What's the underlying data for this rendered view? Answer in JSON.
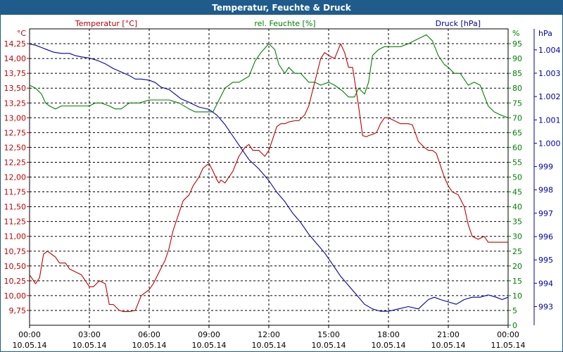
{
  "window": {
    "title": "Temperatur, Feuchte & Druck"
  },
  "chart_data": {
    "type": "line",
    "title": "Temperatur, Feuchte & Druck",
    "axes": {
      "temperature": {
        "label": "Temperatur [°C]",
        "unit": "°C",
        "range": [
          9.5,
          14.5
        ],
        "color": "#c00000",
        "ticks": [
          "9,75",
          "10,00",
          "10,25",
          "10,50",
          "10,75",
          "11,00",
          "11,25",
          "11,50",
          "11,75",
          "12,00",
          "12,25",
          "12,50",
          "12,75",
          "13,00",
          "13,25",
          "13,50",
          "13,75",
          "14,00",
          "14,25"
        ]
      },
      "humidity": {
        "label": "rel. Feuchte [%]",
        "unit": "%",
        "range": [
          0,
          100
        ],
        "color": "#008000",
        "ticks": [
          "0",
          "5",
          "10",
          "15",
          "20",
          "25",
          "30",
          "35",
          "40",
          "45",
          "50",
          "55",
          "60",
          "65",
          "70",
          "75",
          "80",
          "85",
          "90",
          "95"
        ]
      },
      "pressure": {
        "label": "Druck [hPa]",
        "unit": "hPa",
        "range": [
          992.2,
          1004.9
        ],
        "color": "#0000a0",
        "ticks": [
          "993",
          "994",
          "995",
          "996",
          "997",
          "998",
          "999",
          "1.000",
          "1.001",
          "1.002",
          "1.003",
          "1.004"
        ]
      },
      "x": {
        "range": [
          0,
          24
        ],
        "ticks": [
          {
            "time": "00:00",
            "date": "10.05.14"
          },
          {
            "time": "03:00",
            "date": "10.05.14"
          },
          {
            "time": "06:00",
            "date": "10.05.14"
          },
          {
            "time": "09:00",
            "date": "10.05.14"
          },
          {
            "time": "12:00",
            "date": "10.05.14"
          },
          {
            "time": "15:00",
            "date": "10.05.14"
          },
          {
            "time": "18:00",
            "date": "10.05.14"
          },
          {
            "time": "21:00",
            "date": "10.05.14"
          },
          {
            "time": "00:00",
            "date": "11.05.14"
          }
        ]
      }
    },
    "grid": true,
    "series": [
      {
        "name": "Temperatur [°C]",
        "axis": "temperature",
        "color": "#c00000",
        "x": [
          0,
          0.3,
          0.5,
          0.7,
          0.9,
          1.1,
          1.3,
          1.5,
          1.8,
          2.0,
          2.3,
          2.6,
          3.0,
          3.2,
          3.5,
          3.8,
          4.0,
          4.2,
          4.5,
          4.7,
          5.0,
          5.3,
          5.6,
          5.8,
          6.0,
          6.2,
          6.5,
          6.8,
          7.0,
          7.2,
          7.5,
          7.7,
          8.0,
          8.2,
          8.5,
          8.7,
          9.0,
          9.2,
          9.4,
          9.5,
          9.6,
          9.8,
          10.0,
          10.2,
          10.5,
          10.8,
          11.0,
          11.2,
          11.5,
          11.8,
          12.0,
          12.2,
          12.4,
          12.6,
          12.8,
          13.0,
          13.3,
          13.5,
          13.8,
          14.0,
          14.3,
          14.6,
          14.8,
          15.0,
          15.3,
          15.6,
          15.8,
          16.0,
          16.2,
          16.5,
          16.7,
          16.9,
          17.0,
          17.2,
          17.4,
          17.6,
          17.8,
          18.0,
          18.3,
          18.6,
          18.8,
          19.0,
          19.2,
          19.5,
          19.8,
          20.0,
          20.2,
          20.4,
          20.6,
          20.8,
          21.0,
          21.2,
          21.5,
          21.8,
          22.0,
          22.2,
          22.5,
          22.8,
          23.0,
          23.2,
          23.4,
          23.6,
          23.8,
          23.9,
          24.0
        ],
        "values": [
          10.35,
          10.2,
          10.3,
          10.7,
          10.75,
          10.7,
          10.65,
          10.55,
          10.55,
          10.45,
          10.4,
          10.35,
          10.15,
          10.15,
          10.25,
          10.2,
          9.85,
          9.85,
          9.75,
          9.73,
          9.73,
          9.75,
          10.0,
          10.05,
          10.1,
          10.2,
          10.4,
          10.6,
          10.8,
          11.1,
          11.4,
          11.6,
          11.7,
          11.85,
          12.0,
          12.15,
          12.23,
          12.1,
          11.95,
          11.9,
          11.95,
          11.9,
          12.0,
          12.1,
          12.35,
          12.5,
          12.55,
          12.45,
          12.45,
          12.35,
          12.45,
          12.65,
          12.85,
          12.9,
          12.9,
          12.93,
          12.95,
          12.95,
          13.05,
          13.2,
          13.6,
          14.0,
          14.1,
          14.05,
          14.0,
          14.25,
          14.1,
          13.85,
          13.85,
          13.2,
          12.7,
          12.68,
          12.7,
          12.72,
          12.75,
          12.9,
          13.0,
          13.0,
          12.95,
          12.9,
          12.9,
          12.9,
          12.88,
          12.6,
          12.5,
          12.45,
          12.45,
          12.4,
          12.2,
          12.0,
          11.85,
          11.75,
          11.7,
          11.5,
          11.2,
          11.0,
          10.95,
          11.0,
          10.9,
          10.9,
          10.9,
          10.9,
          10.9,
          10.9,
          10.9
        ]
      },
      {
        "name": "rel. Feuchte [%]",
        "axis": "humidity",
        "color": "#008000",
        "x": [
          0,
          0.3,
          0.6,
          0.8,
          1.0,
          1.3,
          1.6,
          2.0,
          2.5,
          3.0,
          3.3,
          3.6,
          4.0,
          4.3,
          4.6,
          5.0,
          5.5,
          6.0,
          6.5,
          7.0,
          7.5,
          8.0,
          8.3,
          8.7,
          9.0,
          9.2,
          9.5,
          9.8,
          10.2,
          10.5,
          11.0,
          11.3,
          11.6,
          12.0,
          12.3,
          12.5,
          12.8,
          13.0,
          13.3,
          13.6,
          14.0,
          14.3,
          14.6,
          15.0,
          15.3,
          15.7,
          16.0,
          16.3,
          16.5,
          16.8,
          17.0,
          17.2,
          17.5,
          17.8,
          18.0,
          18.3,
          18.6,
          19.0,
          19.3,
          19.6,
          19.9,
          20.2,
          20.5,
          20.8,
          21.0,
          21.3,
          21.6,
          22.0,
          22.3,
          22.6,
          23.0,
          23.3,
          23.6,
          24.0
        ],
        "values": [
          81,
          80,
          78,
          75,
          74,
          73,
          74,
          74,
          74,
          74,
          75,
          75,
          74,
          73,
          73,
          75,
          75,
          76,
          76,
          76,
          75,
          73,
          72,
          72,
          72,
          72,
          76,
          80,
          82,
          82,
          84,
          89,
          92,
          95,
          93,
          88,
          85,
          87,
          85,
          85,
          82,
          82,
          81,
          82,
          81,
          79,
          77,
          77,
          80,
          78,
          82,
          91,
          93,
          94,
          94,
          94,
          94,
          95,
          96,
          97,
          98,
          96,
          91,
          88,
          87,
          85,
          85,
          81,
          82,
          81,
          74,
          72,
          71,
          70
        ]
      },
      {
        "name": "Druck [hPa]",
        "axis": "pressure",
        "color": "#0000a0",
        "x": [
          0,
          0.3,
          0.6,
          0.9,
          1.2,
          1.6,
          2.0,
          2.3,
          2.6,
          3.0,
          3.4,
          3.8,
          4.2,
          4.6,
          5.0,
          5.3,
          5.6,
          6.0,
          6.3,
          6.6,
          7.0,
          7.3,
          7.6,
          8.0,
          8.5,
          9.0,
          9.4,
          9.8,
          10.2,
          10.6,
          11.0,
          11.5,
          12.0,
          12.4,
          12.8,
          13.2,
          13.6,
          14.0,
          14.4,
          14.8,
          15.2,
          15.6,
          16.0,
          16.4,
          16.8,
          17.2,
          17.6,
          18.0,
          18.5,
          19.0,
          19.5,
          20.0,
          20.3,
          20.6,
          21.0,
          21.4,
          21.8,
          22.2,
          22.6,
          23.0,
          23.4,
          23.7,
          24.0
        ],
        "values": [
          1004.25,
          1004.2,
          1004.1,
          1004.0,
          1003.9,
          1003.85,
          1003.85,
          1003.75,
          1003.7,
          1003.65,
          1003.55,
          1003.4,
          1003.2,
          1003.05,
          1002.9,
          1002.75,
          1002.75,
          1002.7,
          1002.6,
          1002.4,
          1002.3,
          1002.1,
          1001.9,
          1001.75,
          1001.55,
          1001.45,
          1001.2,
          1000.8,
          1000.3,
          999.8,
          999.3,
          998.9,
          998.4,
          997.9,
          997.5,
          997.0,
          996.6,
          996.1,
          995.7,
          995.3,
          994.8,
          994.3,
          993.9,
          993.5,
          993.1,
          992.9,
          992.8,
          992.8,
          992.9,
          993.0,
          992.9,
          993.3,
          993.4,
          993.3,
          993.2,
          993.1,
          993.3,
          993.4,
          993.4,
          993.5,
          993.4,
          993.3,
          993.4
        ]
      }
    ]
  }
}
